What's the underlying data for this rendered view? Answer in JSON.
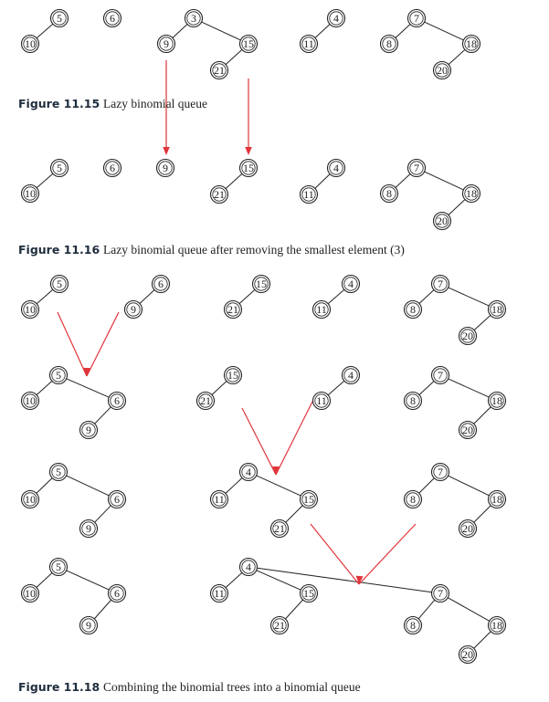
{
  "captions": {
    "fig_11_15": {
      "label": "Figure 11.15",
      "text": "Lazy binomial queue"
    },
    "fig_11_16": {
      "label": "Figure 11.16",
      "text": "Lazy binomial queue after removing the smallest element (3)"
    },
    "fig_11_18": {
      "label": "Figure 11.18",
      "text": "Combining the binomial trees into a binomial queue"
    }
  },
  "stages": [
    {
      "figure": "11.15",
      "trees": [
        {
          "root": 5,
          "children": [
            10
          ]
        },
        {
          "root": 6,
          "children": []
        },
        {
          "root": 3,
          "children": [
            9,
            15
          ],
          "grandchildren": {
            "15": [
              21
            ]
          }
        },
        {
          "root": 4,
          "children": [
            11
          ]
        },
        {
          "root": 7,
          "children": [
            8,
            18
          ],
          "grandchildren": {
            "18": [
              20
            ]
          }
        }
      ]
    },
    {
      "figure": "11.16",
      "trees": [
        {
          "root": 5,
          "children": [
            10
          ]
        },
        {
          "root": 6,
          "children": []
        },
        {
          "root": 9,
          "children": []
        },
        {
          "root": 15,
          "children": [
            21
          ]
        },
        {
          "root": 4,
          "children": [
            11
          ]
        },
        {
          "root": 7,
          "children": [
            8,
            18
          ],
          "grandchildren": {
            "18": [
              20
            ]
          }
        }
      ]
    },
    {
      "figure": "11.18",
      "step": 1
    },
    {
      "figure": "11.18",
      "step": 2
    },
    {
      "figure": "11.18",
      "step": 3
    },
    {
      "figure": "11.18",
      "step": 4
    }
  ],
  "colors": {
    "arrow": "#e0353a",
    "node_stroke": "#222222",
    "caption_label": "#1f2d3d"
  }
}
